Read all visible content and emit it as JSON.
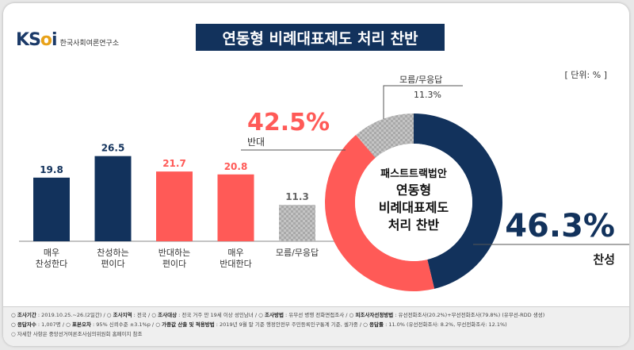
{
  "brand": {
    "logo_text_1": "K",
    "logo_text_2": "S",
    "logo_text_3": "o",
    "logo_text_4": "i",
    "org_name": "한국사회여론연구소"
  },
  "title": "연동형 비례대표제도 처리 찬반",
  "unit": "[ 단위: % ]",
  "colors": {
    "navy": "#12325c",
    "red": "#ff5a57",
    "gray": "#b8b8b8",
    "axis": "#888888"
  },
  "chart_data": [
    {
      "type": "bar",
      "categories": [
        "매우\n찬성한다",
        "찬성하는\n편이다",
        "반대하는\n편이다",
        "매우\n반대한다",
        "모름/무응답"
      ],
      "values": [
        19.8,
        26.5,
        21.7,
        20.8,
        11.3
      ],
      "value_labels": [
        "19.8",
        "26.5",
        "21.7",
        "20.8",
        "11.3"
      ],
      "bar_colors": [
        "#12325c",
        "#12325c",
        "#ff5a57",
        "#ff5a57",
        "#b8b8b8"
      ],
      "ylim": [
        0,
        40
      ]
    },
    {
      "type": "pie",
      "center_label": [
        "패스트트랙법안",
        "연동형",
        "비례대표제도",
        "처리 찬반"
      ],
      "slices": [
        {
          "label": "찬성",
          "value": 46.3,
          "value_label": "46.3%",
          "color": "#12325c"
        },
        {
          "label": "반대",
          "value": 42.5,
          "value_label": "42.5%",
          "color": "#ff5a57"
        },
        {
          "label": "모름/무응답",
          "value": 11.3,
          "value_label": "11.3%",
          "color": "#b8b8b8"
        }
      ]
    }
  ],
  "footer": {
    "line1": [
      {
        "k": "조사기간",
        "v": ": 2019.10.25.~26.(2일간)"
      },
      {
        "k": "조사지역",
        "v": ": 전국"
      },
      {
        "k": "조사대상",
        "v": ": 전국 거주 만 19세 이상 성인남녀"
      },
      {
        "k": "조사방법",
        "v": ": 유무선 병행 전화면접조사"
      },
      {
        "k": "피조사자선정방법",
        "v": ": 유선전화조사(20.2%)+무선전화조사(79.8%) (유무선-RDD 생성)"
      }
    ],
    "line2": [
      {
        "k": "응답자수",
        "v": ": 1,007명"
      },
      {
        "k": "표본오차",
        "v": ": 95% 신뢰수준 ±3.1%p"
      },
      {
        "k": "가중값 산출 및 적용방법",
        "v": ": 2019년 9월 말 기준 행정안전부 주민등록인구통계 기준, 셀가중"
      },
      {
        "k": "응답률",
        "v": ": 11.0% (유선전화조사: 8.2%, 무선전화조사: 12.1%)"
      }
    ],
    "line3": "자세한 사항은 중앙선거여론조사심의위원회 홈페이지 참조"
  }
}
